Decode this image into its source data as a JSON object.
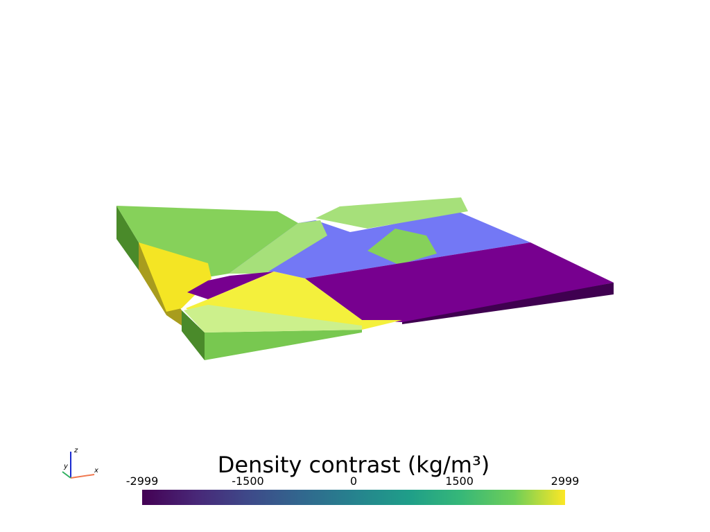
{
  "scalar_bar": {
    "title": "Density contrast (kg/m³)",
    "ticks": [
      -2999,
      -1500,
      0,
      1500,
      2999
    ]
  },
  "orientation_axes": {
    "x": "x",
    "y": "y",
    "z": "z"
  }
}
